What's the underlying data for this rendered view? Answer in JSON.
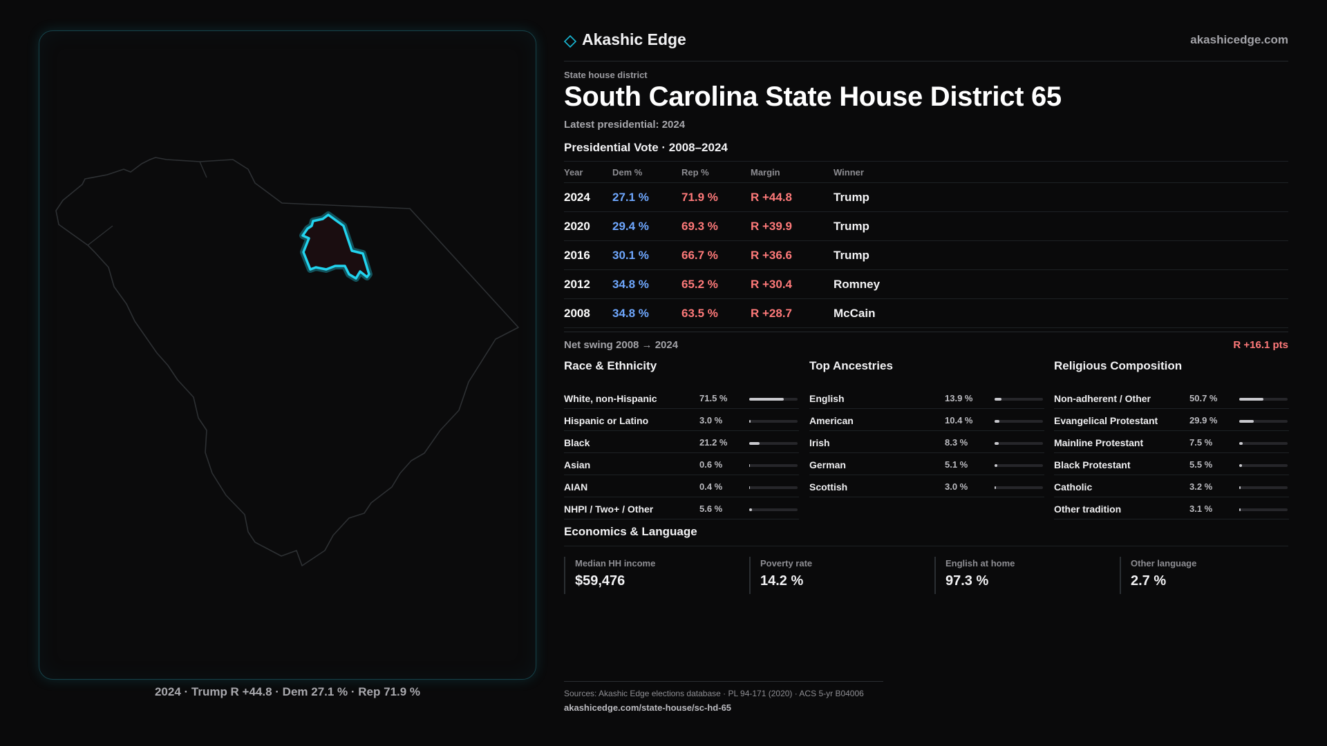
{
  "brand": {
    "name": "Akashic Edge",
    "url": "akashicedge.com",
    "accent": "#19b9d6"
  },
  "kicker": "State house district",
  "title": "South Carolina State House District 65",
  "latest": "Latest presidential: 2024",
  "map": {
    "caption": "2024 · Trump R +44.8 · Dem 27.1 % · Rep 71.9 %",
    "highlight_color": "#22d3ee"
  },
  "vote": {
    "title": "Presidential Vote · 2008–2024",
    "headers": [
      "Year",
      "Dem %",
      "Rep %",
      "Margin",
      "Winner"
    ],
    "rows": [
      {
        "year": "2024",
        "dem": "27.1 %",
        "rep": "71.9 %",
        "margin": "R +44.8",
        "winner": "Trump"
      },
      {
        "year": "2020",
        "dem": "29.4 %",
        "rep": "69.3 %",
        "margin": "R +39.9",
        "winner": "Trump"
      },
      {
        "year": "2016",
        "dem": "30.1 %",
        "rep": "66.7 %",
        "margin": "R +36.6",
        "winner": "Trump"
      },
      {
        "year": "2012",
        "dem": "34.8 %",
        "rep": "65.2 %",
        "margin": "R +30.4",
        "winner": "Romney"
      },
      {
        "year": "2008",
        "dem": "34.8 %",
        "rep": "63.5 %",
        "margin": "R +28.7",
        "winner": "McCain"
      }
    ]
  },
  "swing": {
    "label": "Net swing 2008 → 2024",
    "value": "R +16.1 pts"
  },
  "race": {
    "title": "Race & Ethnicity",
    "rows": [
      {
        "label": "White, non-Hispanic",
        "value": "71.5 %",
        "pct": 71.5
      },
      {
        "label": "Hispanic or Latino",
        "value": "3.0 %",
        "pct": 3.0
      },
      {
        "label": "Black",
        "value": "21.2 %",
        "pct": 21.2
      },
      {
        "label": "Asian",
        "value": "0.6 %",
        "pct": 0.6
      },
      {
        "label": "AIAN",
        "value": "0.4 %",
        "pct": 0.4
      },
      {
        "label": "NHPI / Two+ / Other",
        "value": "5.6 %",
        "pct": 5.6
      }
    ]
  },
  "ancestry": {
    "title": "Top Ancestries",
    "rows": [
      {
        "label": "English",
        "value": "13.9 %",
        "pct": 13.9
      },
      {
        "label": "American",
        "value": "10.4 %",
        "pct": 10.4
      },
      {
        "label": "Irish",
        "value": "8.3 %",
        "pct": 8.3
      },
      {
        "label": "German",
        "value": "5.1 %",
        "pct": 5.1
      },
      {
        "label": "Scottish",
        "value": "3.0 %",
        "pct": 3.0
      }
    ]
  },
  "religion": {
    "title": "Religious Composition",
    "rows": [
      {
        "label": "Non-adherent / Other",
        "value": "50.7 %",
        "pct": 50.7
      },
      {
        "label": "Evangelical Protestant",
        "value": "29.9 %",
        "pct": 29.9
      },
      {
        "label": "Mainline Protestant",
        "value": "7.5 %",
        "pct": 7.5
      },
      {
        "label": "Black Protestant",
        "value": "5.5 %",
        "pct": 5.5
      },
      {
        "label": "Catholic",
        "value": "3.2 %",
        "pct": 3.2
      },
      {
        "label": "Other tradition",
        "value": "3.1 %",
        "pct": 3.1
      }
    ]
  },
  "econ": {
    "title": "Economics & Language",
    "cards": [
      {
        "label": "Median HH income",
        "value": "$59,476"
      },
      {
        "label": "Poverty rate",
        "value": "14.2 %"
      },
      {
        "label": "English at home",
        "value": "97.3 %"
      },
      {
        "label": "Other language",
        "value": "2.7 %"
      }
    ]
  },
  "footer": {
    "sources": "Sources: Akashic Edge elections database · PL 94-171 (2020) · ACS 5-yr B04006",
    "url": "akashicedge.com/state-house/sc-hd-65"
  }
}
